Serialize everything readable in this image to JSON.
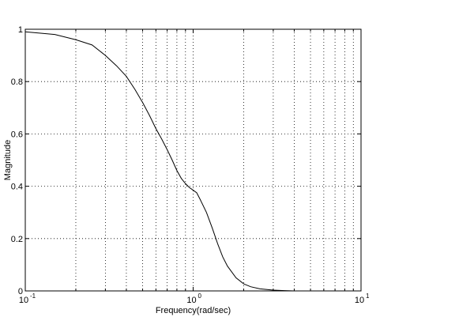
{
  "chart_data": {
    "type": "line",
    "title": "",
    "xlabel": "Frequency(rad/sec)",
    "ylabel": "Magnitude",
    "xscale": "log",
    "xlim": [
      0.1,
      10
    ],
    "ylim": [
      0,
      1
    ],
    "grid": true,
    "grid_style": "dotted",
    "x_ticks": [
      {
        "value": 0.1,
        "base": "10",
        "exp": "-1"
      },
      {
        "value": 1,
        "base": "10",
        "exp": "0"
      },
      {
        "value": 10,
        "base": "10",
        "exp": "1"
      }
    ],
    "y_ticks": [
      {
        "value": 0,
        "label": "0"
      },
      {
        "value": 0.2,
        "label": "0.2"
      },
      {
        "value": 0.4,
        "label": "0.4"
      },
      {
        "value": 0.6,
        "label": "0.6"
      },
      {
        "value": 0.8,
        "label": "0.8"
      },
      {
        "value": 1,
        "label": "1"
      }
    ],
    "series": [
      {
        "color": "#000000",
        "x": [
          0.1,
          0.15,
          0.2,
          0.25,
          0.3,
          0.35,
          0.4,
          0.45,
          0.5,
          0.55,
          0.6,
          0.65,
          0.7,
          0.75,
          0.8,
          0.85,
          0.9,
          0.95,
          1.0,
          1.05,
          1.1,
          1.2,
          1.3,
          1.4,
          1.5,
          1.6,
          1.8,
          2.0,
          2.2,
          2.5,
          3.0,
          3.5,
          4.0
        ],
        "y": [
          0.99,
          0.98,
          0.96,
          0.94,
          0.9,
          0.86,
          0.82,
          0.77,
          0.72,
          0.67,
          0.62,
          0.58,
          0.54,
          0.5,
          0.46,
          0.43,
          0.41,
          0.395,
          0.385,
          0.375,
          0.35,
          0.3,
          0.24,
          0.18,
          0.13,
          0.095,
          0.05,
          0.027,
          0.016,
          0.008,
          0.003,
          0.001,
          0.0
        ]
      }
    ]
  }
}
